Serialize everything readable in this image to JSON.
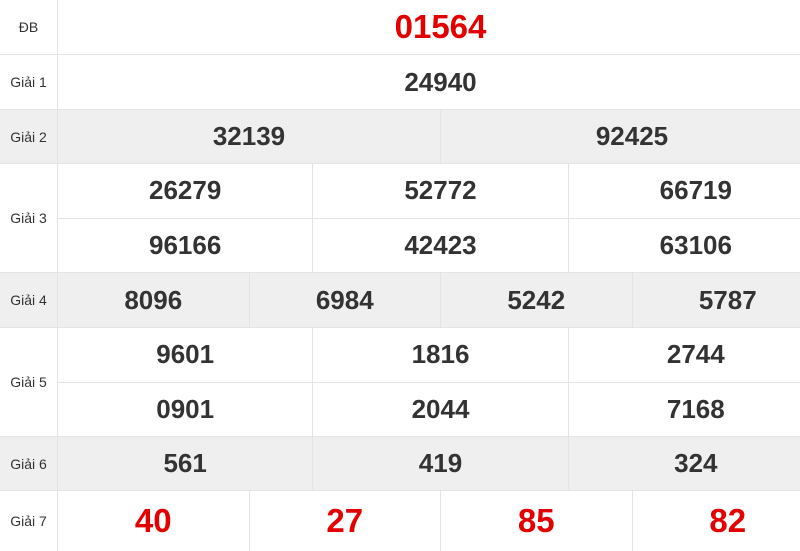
{
  "colors": {
    "highlight": "#e20000",
    "text": "#333333",
    "stripe": "#efefef"
  },
  "prizes": [
    {
      "label": "ĐB",
      "rows": [
        [
          "01564"
        ]
      ]
    },
    {
      "label": "Giải 1",
      "rows": [
        [
          "24940"
        ]
      ]
    },
    {
      "label": "Giải 2",
      "rows": [
        [
          "32139",
          "92425"
        ]
      ]
    },
    {
      "label": "Giải 3",
      "rows": [
        [
          "26279",
          "52772",
          "66719"
        ],
        [
          "96166",
          "42423",
          "63106"
        ]
      ]
    },
    {
      "label": "Giải 4",
      "rows": [
        [
          "8096",
          "6984",
          "5242",
          "5787"
        ]
      ]
    },
    {
      "label": "Giải 5",
      "rows": [
        [
          "9601",
          "1816",
          "2744"
        ],
        [
          "0901",
          "2044",
          "7168"
        ]
      ]
    },
    {
      "label": "Giải 6",
      "rows": [
        [
          "561",
          "419",
          "324"
        ]
      ]
    },
    {
      "label": "Giải 7",
      "rows": [
        [
          "40",
          "27",
          "85",
          "82"
        ]
      ]
    }
  ]
}
